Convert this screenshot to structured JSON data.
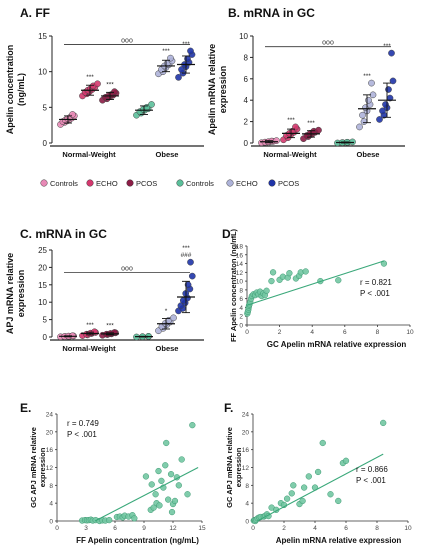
{
  "colors": {
    "nw_controls": "#e889b6",
    "nw_echo": "#d4386e",
    "nw_pcos": "#8c1d46",
    "ob_controls": "#5bbf9a",
    "ob_echo": "#aeb3d9",
    "ob_pcos": "#1f34a8",
    "corr_point": "#72c6a2",
    "corr_line": "#3aa87a"
  },
  "legend": {
    "nw": [
      "Controls",
      "ECHO",
      "PCOS"
    ],
    "ob": [
      "Controls",
      "ECHO",
      "PCOS"
    ]
  },
  "sig_labels": {
    "ooo": "ooo",
    "star3": "***",
    "star1": "*",
    "hash3": "###"
  },
  "chart_data": [
    {
      "id": "A",
      "type": "scatter",
      "title": "A. FF",
      "ylabel": "Apelin concentration (ng/mL)",
      "ylim": [
        0,
        15
      ],
      "yticks": [
        0,
        5,
        10,
        15
      ],
      "group_labels": [
        "Normal-Weight",
        "Obese"
      ],
      "series": [
        {
          "name": "Controls",
          "group": "Normal-Weight",
          "mean": 3.3,
          "sd": 0.5,
          "sig": "",
          "values": [
            2.6,
            2.9,
            3.0,
            3.1,
            3.2,
            3.3,
            3.4,
            3.5,
            3.6,
            3.8,
            4.0
          ]
        },
        {
          "name": "ECHO",
          "group": "Normal-Weight",
          "mean": 7.4,
          "sd": 0.7,
          "sig": "***",
          "values": [
            6.6,
            6.9,
            7.1,
            7.2,
            7.4,
            7.5,
            7.6,
            7.8,
            8.0,
            8.3
          ]
        },
        {
          "name": "PCOS",
          "group": "Normal-Weight",
          "mean": 6.6,
          "sd": 0.5,
          "sig": "***",
          "values": [
            6.0,
            6.2,
            6.4,
            6.5,
            6.6,
            6.7,
            6.8,
            7.0,
            7.2
          ]
        },
        {
          "name": "Controls",
          "group": "Obese",
          "mean": 4.6,
          "sd": 0.6,
          "sig": "",
          "values": [
            3.9,
            4.2,
            4.4,
            4.6,
            4.7,
            4.8,
            5.0,
            5.4
          ]
        },
        {
          "name": "ECHO",
          "group": "Obese",
          "mean": 10.8,
          "sd": 0.8,
          "sig": "***",
          "values": [
            9.7,
            10.0,
            10.3,
            10.6,
            10.8,
            11.0,
            11.2,
            11.5,
            11.9
          ]
        },
        {
          "name": "PCOS",
          "group": "Obese",
          "mean": 11.0,
          "sd": 1.2,
          "sig": "***",
          "values": [
            9.2,
            9.8,
            10.3,
            10.7,
            11.0,
            11.3,
            11.8,
            12.4,
            12.9
          ]
        }
      ],
      "bracket": {
        "label": "ooo",
        "y": 13.8
      }
    },
    {
      "id": "B",
      "type": "scatter",
      "title": "B. mRNA in GC",
      "ylabel": "Apelin mRNA relative expression",
      "ylim": [
        0,
        10
      ],
      "yticks": [
        0,
        2,
        4,
        6,
        8,
        10
      ],
      "group_labels": [
        "Normal-Weight",
        "Obese"
      ],
      "series": [
        {
          "name": "Controls",
          "group": "Normal-Weight",
          "mean": 0.12,
          "sd": 0.1,
          "sig": "",
          "values": [
            0.02,
            0.05,
            0.08,
            0.1,
            0.12,
            0.15,
            0.18,
            0.22
          ]
        },
        {
          "name": "ECHO",
          "group": "Normal-Weight",
          "mean": 0.9,
          "sd": 0.4,
          "sig": "***",
          "values": [
            0.3,
            0.5,
            0.7,
            0.8,
            0.9,
            1.0,
            1.1,
            1.3,
            1.5
          ]
        },
        {
          "name": "PCOS",
          "group": "Normal-Weight",
          "mean": 0.85,
          "sd": 0.3,
          "sig": "***",
          "values": [
            0.4,
            0.6,
            0.7,
            0.8,
            0.9,
            1.0,
            1.1,
            1.2
          ]
        },
        {
          "name": "Controls",
          "group": "Obese",
          "mean": 0.05,
          "sd": 0.05,
          "sig": "",
          "values": [
            0.0,
            0.02,
            0.04,
            0.05,
            0.07,
            0.1
          ]
        },
        {
          "name": "ECHO",
          "group": "Obese",
          "mean": 3.2,
          "sd": 1.3,
          "sig": "***",
          "values": [
            1.5,
            2.0,
            2.6,
            3.0,
            3.3,
            3.6,
            4.0,
            4.5,
            5.6
          ]
        },
        {
          "name": "PCOS",
          "group": "Obese",
          "mean": 4.0,
          "sd": 1.6,
          "sig": "***",
          "values": [
            2.2,
            2.6,
            3.0,
            3.3,
            3.6,
            4.2,
            5.0,
            5.8,
            8.4
          ]
        }
      ],
      "bracket": {
        "label": "ooo",
        "y": 9.0
      }
    },
    {
      "id": "C",
      "type": "scatter",
      "title": "C. mRNA in GC",
      "ylabel": "APJ mRNA relative expression",
      "ylim": [
        0,
        25
      ],
      "yticks": [
        0,
        5,
        10,
        15,
        20,
        25
      ],
      "group_labels": [
        "Normal-Weight",
        "Obese"
      ],
      "series": [
        {
          "name": "Controls",
          "group": "Normal-Weight",
          "mean": 0.2,
          "sd": 0.15,
          "sig": "",
          "values": [
            0.05,
            0.1,
            0.15,
            0.2,
            0.25,
            0.3,
            0.35
          ]
        },
        {
          "name": "ECHO",
          "group": "Normal-Weight",
          "mean": 1.0,
          "sd": 0.4,
          "sig": "***",
          "values": [
            0.4,
            0.6,
            0.8,
            1.0,
            1.1,
            1.3,
            1.5
          ]
        },
        {
          "name": "PCOS",
          "group": "Normal-Weight",
          "mean": 0.9,
          "sd": 0.3,
          "sig": "***",
          "values": [
            0.5,
            0.7,
            0.8,
            0.9,
            1.0,
            1.2,
            1.3
          ]
        },
        {
          "name": "Controls",
          "group": "Obese",
          "mean": 0.1,
          "sd": 0.1,
          "sig": "",
          "values": [
            0.0,
            0.05,
            0.1,
            0.15,
            0.2
          ]
        },
        {
          "name": "ECHO",
          "group": "Obese",
          "mean": 3.8,
          "sd": 1.5,
          "sig": "*",
          "values": [
            1.8,
            2.5,
            3.0,
            3.5,
            3.9,
            4.3,
            4.8,
            5.5
          ]
        },
        {
          "name": "PCOS",
          "group": "Obese",
          "mean": 11.5,
          "sd": 4.5,
          "sig": "***",
          "sig2": "###",
          "values": [
            7.5,
            8.2,
            9.0,
            9.8,
            10.5,
            11.2,
            12.5,
            13.8,
            15.0,
            17.5,
            21.5
          ]
        }
      ],
      "bracket": {
        "label": "ooo",
        "y": 18.5
      }
    },
    {
      "id": "D",
      "type": "scatter",
      "title": "D.",
      "xlabel": "GC Apelin mRNA relative expression",
      "ylabel": "FF Apelin concentraton (ng/mL)",
      "xlim": [
        0,
        10
      ],
      "ylim": [
        0,
        18
      ],
      "xticks": [
        0,
        2,
        4,
        6,
        8,
        10
      ],
      "yticks": [
        0,
        2,
        4,
        6,
        8,
        10,
        12,
        14,
        16,
        18
      ],
      "annotation": [
        "r = 0.821",
        "P < .001"
      ],
      "fit": [
        [
          0.0,
          4.5
        ],
        [
          8.4,
          14.6
        ]
      ],
      "points": [
        [
          0.02,
          2.6
        ],
        [
          0.05,
          3.0
        ],
        [
          0.08,
          3.5
        ],
        [
          0.1,
          4.0
        ],
        [
          0.12,
          4.4
        ],
        [
          0.15,
          4.7
        ],
        [
          0.2,
          5.2
        ],
        [
          0.25,
          6.0
        ],
        [
          0.3,
          6.6
        ],
        [
          0.4,
          7.0
        ],
        [
          0.5,
          6.8
        ],
        [
          0.6,
          7.4
        ],
        [
          0.7,
          7.0
        ],
        [
          0.8,
          7.6
        ],
        [
          0.9,
          6.6
        ],
        [
          1.0,
          7.2
        ],
        [
          1.1,
          6.8
        ],
        [
          1.2,
          7.8
        ],
        [
          1.5,
          10.0
        ],
        [
          1.6,
          12.0
        ],
        [
          2.0,
          10.3
        ],
        [
          2.2,
          11.0
        ],
        [
          2.5,
          10.8
        ],
        [
          2.6,
          11.8
        ],
        [
          3.0,
          10.6
        ],
        [
          3.2,
          11.2
        ],
        [
          3.3,
          12.0
        ],
        [
          3.6,
          12.2
        ],
        [
          4.5,
          10.0
        ],
        [
          5.6,
          10.2
        ],
        [
          8.4,
          14.0
        ]
      ]
    },
    {
      "id": "E",
      "type": "scatter",
      "title": "E.",
      "xlabel": "FF Apelin concentration (ng/mL)",
      "ylabel": "GC APJ mRNA relative expression",
      "xlim": [
        0,
        15
      ],
      "ylim": [
        0,
        24
      ],
      "xticks": [
        0,
        3,
        6,
        9,
        12,
        15
      ],
      "yticks": [
        0,
        4,
        8,
        12,
        16,
        20,
        24
      ],
      "annotation": [
        "r = 0.749",
        "P < .001"
      ],
      "fit": [
        [
          2.6,
          -1.5
        ],
        [
          14.6,
          12.0
        ]
      ],
      "points": [
        [
          2.6,
          0.1
        ],
        [
          2.9,
          0.2
        ],
        [
          3.1,
          0.15
        ],
        [
          3.3,
          0.2
        ],
        [
          3.5,
          0.3
        ],
        [
          3.7,
          0.1
        ],
        [
          4.0,
          0.2
        ],
        [
          4.4,
          0.0
        ],
        [
          4.7,
          0.15
        ],
        [
          5.0,
          0.1
        ],
        [
          5.4,
          0.2
        ],
        [
          6.2,
          0.9
        ],
        [
          6.5,
          1.0
        ],
        [
          6.8,
          0.8
        ],
        [
          7.0,
          1.2
        ],
        [
          7.4,
          1.0
        ],
        [
          7.8,
          1.3
        ],
        [
          8.0,
          0.6
        ],
        [
          9.7,
          2.5
        ],
        [
          10.0,
          3.0
        ],
        [
          10.3,
          4.0
        ],
        [
          10.6,
          3.5
        ],
        [
          10.8,
          9.0
        ],
        [
          11.0,
          7.5
        ],
        [
          11.2,
          12.5
        ],
        [
          11.5,
          4.8
        ],
        [
          11.8,
          10.5
        ],
        [
          12.0,
          3.8
        ],
        [
          12.4,
          9.8
        ],
        [
          12.9,
          13.8
        ],
        [
          9.2,
          10.0
        ],
        [
          9.8,
          8.2
        ],
        [
          10.5,
          11.2
        ],
        [
          11.3,
          17.5
        ],
        [
          11.9,
          2.0
        ],
        [
          12.2,
          4.5
        ],
        [
          13.5,
          6.0
        ],
        [
          14.0,
          21.5
        ],
        [
          10.2,
          6.0
        ],
        [
          12.6,
          8.0
        ]
      ]
    },
    {
      "id": "F",
      "type": "scatter",
      "title": "F.",
      "xlabel": "Apelin mRNA relative expression",
      "ylabel": "GC APJ mRNA relative expression",
      "xlim": [
        0,
        10
      ],
      "ylim": [
        0,
        24
      ],
      "xticks": [
        0,
        2,
        4,
        6,
        8,
        10
      ],
      "yticks": [
        0,
        4,
        8,
        12,
        16,
        20,
        24
      ],
      "annotation": [
        "r = 0.866",
        "P < .001"
      ],
      "fit": [
        [
          0.0,
          -0.5
        ],
        [
          8.4,
          15.0
        ]
      ],
      "points": [
        [
          0.05,
          0.1
        ],
        [
          0.1,
          0.2
        ],
        [
          0.15,
          0.0
        ],
        [
          0.2,
          0.3
        ],
        [
          0.3,
          0.6
        ],
        [
          0.4,
          0.8
        ],
        [
          0.5,
          0.9
        ],
        [
          0.7,
          1.0
        ],
        [
          0.8,
          1.2
        ],
        [
          0.9,
          1.5
        ],
        [
          1.0,
          1.1
        ],
        [
          1.2,
          3.0
        ],
        [
          1.5,
          2.5
        ],
        [
          1.8,
          4.0
        ],
        [
          2.0,
          3.6
        ],
        [
          2.2,
          5.0
        ],
        [
          2.5,
          6.2
        ],
        [
          2.6,
          8.0
        ],
        [
          3.0,
          3.8
        ],
        [
          3.2,
          4.5
        ],
        [
          3.3,
          7.5
        ],
        [
          3.6,
          10.0
        ],
        [
          4.0,
          7.5
        ],
        [
          4.2,
          11.0
        ],
        [
          4.5,
          17.5
        ],
        [
          5.0,
          6.0
        ],
        [
          5.5,
          4.5
        ],
        [
          5.8,
          13.0
        ],
        [
          6.0,
          13.5
        ],
        [
          8.4,
          22.0
        ]
      ]
    }
  ]
}
